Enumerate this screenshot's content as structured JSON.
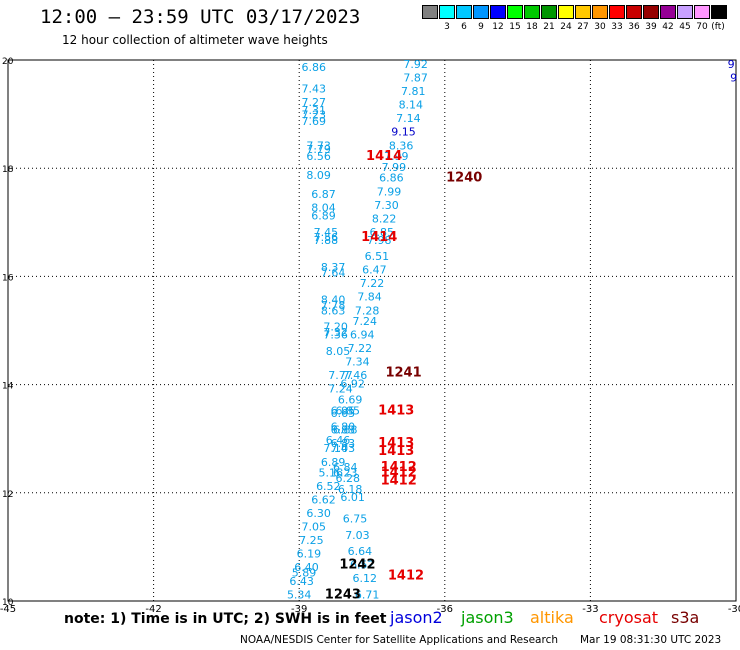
{
  "title": "12:00 – 23:59 UTC 03/17/2023",
  "subtitle": "12 hour collection of altimeter wave heights",
  "legend": {
    "unit": "(ft)",
    "entries": [
      {
        "label": "",
        "color": "#808080"
      },
      {
        "label": "3",
        "color": "#00ffff"
      },
      {
        "label": "6",
        "color": "#00c8ff"
      },
      {
        "label": "9",
        "color": "#0096ff"
      },
      {
        "label": "12",
        "color": "#0000ff"
      },
      {
        "label": "15",
        "color": "#00ff00"
      },
      {
        "label": "18",
        "color": "#00c800"
      },
      {
        "label": "21",
        "color": "#009600"
      },
      {
        "label": "24",
        "color": "#ffff00"
      },
      {
        "label": "27",
        "color": "#ffc800"
      },
      {
        "label": "30",
        "color": "#ff9600"
      },
      {
        "label": "33",
        "color": "#ff0000"
      },
      {
        "label": "36",
        "color": "#c80000"
      },
      {
        "label": "39",
        "color": "#960000"
      },
      {
        "label": "42",
        "color": "#960096"
      },
      {
        "label": "45",
        "color": "#c8a0ff"
      },
      {
        "label": "70",
        "color": "#ff96ff"
      },
      {
        "label": "",
        "color": "#000000"
      }
    ]
  },
  "map": {
    "lon_range": [
      -45,
      -30
    ],
    "lat_range": [
      10,
      20
    ],
    "lon_ticks": [
      {
        "value": -45,
        "label": "-45"
      },
      {
        "value": -42,
        "label": "-42"
      },
      {
        "value": -39,
        "label": "-39"
      },
      {
        "value": -36,
        "label": "-36"
      },
      {
        "value": -33,
        "label": "-33"
      },
      {
        "value": -30,
        "label": "-30"
      }
    ],
    "lat_ticks": [
      {
        "value": 10,
        "label": "10"
      },
      {
        "value": 12,
        "label": "12"
      },
      {
        "value": 14,
        "label": "14"
      },
      {
        "value": 16,
        "label": "16"
      },
      {
        "value": 18,
        "label": "18"
      },
      {
        "value": 20,
        "label": "20"
      }
    ],
    "colors": {
      "swh": "#0aa0e6",
      "swh_high": "#0000c8",
      "id_red": "#e60000",
      "id_dark": "#780000",
      "id_black": "#000000"
    },
    "track_a": [
      {
        "lon": -38.7,
        "lat": 19.8,
        "v": "6.86"
      },
      {
        "lon": -38.7,
        "lat": 19.4,
        "v": "7.43"
      },
      {
        "lon": -38.7,
        "lat": 19.15,
        "v": "7.27"
      },
      {
        "lon": -38.7,
        "lat": 19.0,
        "v": "7.31"
      },
      {
        "lon": -38.7,
        "lat": 18.92,
        "v": "7.23"
      },
      {
        "lon": -38.7,
        "lat": 18.8,
        "v": "7.69"
      },
      {
        "lon": -38.6,
        "lat": 18.35,
        "v": "7.73"
      },
      {
        "lon": -38.6,
        "lat": 18.28,
        "v": "7.79"
      },
      {
        "lon": -38.6,
        "lat": 18.15,
        "v": "6.56"
      },
      {
        "lon": -38.6,
        "lat": 17.8,
        "v": "8.09"
      },
      {
        "lon": -38.5,
        "lat": 17.45,
        "v": "6.87"
      },
      {
        "lon": -38.5,
        "lat": 17.2,
        "v": "8.04"
      },
      {
        "lon": -38.5,
        "lat": 17.05,
        "v": "6.89"
      },
      {
        "lon": -38.45,
        "lat": 16.75,
        "v": "7.45"
      },
      {
        "lon": -38.45,
        "lat": 16.65,
        "v": "7.56"
      },
      {
        "lon": -38.45,
        "lat": 16.6,
        "v": "7.88"
      },
      {
        "lon": -38.3,
        "lat": 16.1,
        "v": "8.37"
      },
      {
        "lon": -38.3,
        "lat": 16.0,
        "v": "7.64"
      },
      {
        "lon": -38.3,
        "lat": 15.5,
        "v": "8.40"
      },
      {
        "lon": -38.3,
        "lat": 15.4,
        "v": "7.78"
      },
      {
        "lon": -38.3,
        "lat": 15.3,
        "v": "8.63"
      },
      {
        "lon": -38.25,
        "lat": 15.0,
        "v": "7.20"
      },
      {
        "lon": -38.25,
        "lat": 14.9,
        "v": "7.32"
      },
      {
        "lon": -38.25,
        "lat": 14.85,
        "v": "7.36"
      },
      {
        "lon": -38.2,
        "lat": 14.55,
        "v": "8.05"
      },
      {
        "lon": -38.15,
        "lat": 14.1,
        "v": "7.77"
      },
      {
        "lon": -38.15,
        "lat": 13.85,
        "v": "7.24"
      },
      {
        "lon": -38.1,
        "lat": 13.45,
        "v": "6.95"
      },
      {
        "lon": -38.1,
        "lat": 13.4,
        "v": "6.65"
      },
      {
        "lon": -38.1,
        "lat": 13.15,
        "v": "6.80"
      },
      {
        "lon": -38.1,
        "lat": 13.1,
        "v": "6.83"
      },
      {
        "lon": -38.2,
        "lat": 12.9,
        "v": "6.46"
      },
      {
        "lon": -38.25,
        "lat": 12.75,
        "v": "7.14"
      },
      {
        "lon": -38.3,
        "lat": 12.5,
        "v": "6.89"
      },
      {
        "lon": -38.35,
        "lat": 12.3,
        "v": "5.16"
      },
      {
        "lon": -38.4,
        "lat": 12.05,
        "v": "6.52"
      },
      {
        "lon": -38.5,
        "lat": 11.8,
        "v": "6.62"
      },
      {
        "lon": -38.6,
        "lat": 11.55,
        "v": "6.30"
      },
      {
        "lon": -38.7,
        "lat": 11.3,
        "v": "7.05"
      },
      {
        "lon": -38.75,
        "lat": 11.05,
        "v": "7.25"
      },
      {
        "lon": -38.8,
        "lat": 10.8,
        "v": "6.19"
      },
      {
        "lon": -38.85,
        "lat": 10.55,
        "v": "6.40"
      },
      {
        "lon": -38.9,
        "lat": 10.45,
        "v": "5.89"
      },
      {
        "lon": -38.95,
        "lat": 10.3,
        "v": "6.43"
      },
      {
        "lon": -39.0,
        "lat": 10.05,
        "v": "5.34"
      }
    ],
    "track_b": [
      {
        "lon": -36.6,
        "lat": 19.85,
        "v": "7.92"
      },
      {
        "lon": -36.6,
        "lat": 19.6,
        "v": "7.87"
      },
      {
        "lon": -36.65,
        "lat": 19.35,
        "v": "7.81"
      },
      {
        "lon": -36.7,
        "lat": 19.1,
        "v": "8.14"
      },
      {
        "lon": -36.75,
        "lat": 18.85,
        "v": "7.14"
      },
      {
        "lon": -36.85,
        "lat": 18.6,
        "v": "9.15",
        "hi": true
      },
      {
        "lon": -36.9,
        "lat": 18.35,
        "v": "8.36"
      },
      {
        "lon": -37.0,
        "lat": 18.15,
        "v": "7.99"
      },
      {
        "lon": -37.05,
        "lat": 17.95,
        "v": "7.99"
      },
      {
        "lon": -37.1,
        "lat": 17.75,
        "v": "6.86"
      },
      {
        "lon": -37.15,
        "lat": 17.5,
        "v": "7.99"
      },
      {
        "lon": -37.2,
        "lat": 17.25,
        "v": "7.30"
      },
      {
        "lon": -37.25,
        "lat": 17.0,
        "v": "8.22"
      },
      {
        "lon": -37.3,
        "lat": 16.75,
        "v": "6.85"
      },
      {
        "lon": -37.35,
        "lat": 16.6,
        "v": "7.98"
      },
      {
        "lon": -37.4,
        "lat": 16.3,
        "v": "6.51"
      },
      {
        "lon": -37.45,
        "lat": 16.05,
        "v": "6.47"
      },
      {
        "lon": -37.5,
        "lat": 15.8,
        "v": "7.22"
      },
      {
        "lon": -37.55,
        "lat": 15.55,
        "v": "7.84"
      },
      {
        "lon": -37.6,
        "lat": 15.3,
        "v": "7.28"
      },
      {
        "lon": -37.65,
        "lat": 15.1,
        "v": "7.24"
      },
      {
        "lon": -37.7,
        "lat": 14.85,
        "v": "6.94"
      },
      {
        "lon": -37.75,
        "lat": 14.6,
        "v": "7.22"
      },
      {
        "lon": -37.8,
        "lat": 14.35,
        "v": "7.34"
      },
      {
        "lon": -37.85,
        "lat": 14.1,
        "v": "7.46"
      },
      {
        "lon": -37.9,
        "lat": 13.95,
        "v": "6.92"
      },
      {
        "lon": -37.95,
        "lat": 13.65,
        "v": "6.69"
      },
      {
        "lon": -38.0,
        "lat": 13.45,
        "v": "6.85"
      },
      {
        "lon": -38.05,
        "lat": 13.1,
        "v": "6.88"
      },
      {
        "lon": -38.1,
        "lat": 12.85,
        "v": "6.83"
      },
      {
        "lon": -38.1,
        "lat": 12.75,
        "v": "7.03"
      },
      {
        "lon": -38.05,
        "lat": 12.4,
        "v": "6.84"
      },
      {
        "lon": -38.05,
        "lat": 12.3,
        "v": "6.23"
      },
      {
        "lon": -38.0,
        "lat": 12.2,
        "v": "6.28"
      },
      {
        "lon": -37.95,
        "lat": 12.0,
        "v": "6.18"
      },
      {
        "lon": -37.9,
        "lat": 11.85,
        "v": "6.01"
      },
      {
        "lon": -37.85,
        "lat": 11.45,
        "v": "6.75"
      },
      {
        "lon": -37.8,
        "lat": 11.15,
        "v": "7.03"
      },
      {
        "lon": -37.75,
        "lat": 10.85,
        "v": "6.64"
      },
      {
        "lon": -37.7,
        "lat": 10.6,
        "v": "6.52"
      },
      {
        "lon": -37.65,
        "lat": 10.35,
        "v": "6.12"
      },
      {
        "lon": -37.6,
        "lat": 10.05,
        "v": "6.71"
      }
    ],
    "pass_ids": [
      {
        "lon": -37.25,
        "lat": 18.15,
        "v": "1414",
        "c": "id_red"
      },
      {
        "lon": -35.6,
        "lat": 17.75,
        "v": "1240",
        "c": "id_dark"
      },
      {
        "lon": -37.35,
        "lat": 16.65,
        "v": "1414",
        "c": "id_red"
      },
      {
        "lon": -36.85,
        "lat": 14.15,
        "v": "1241",
        "c": "id_dark"
      },
      {
        "lon": -37.0,
        "lat": 13.45,
        "v": "1413",
        "c": "id_red"
      },
      {
        "lon": -37.0,
        "lat": 12.85,
        "v": "1413",
        "c": "id_red"
      },
      {
        "lon": -37.0,
        "lat": 12.7,
        "v": "1413",
        "c": "id_red"
      },
      {
        "lon": -36.95,
        "lat": 12.4,
        "v": "1412",
        "c": "id_red"
      },
      {
        "lon": -36.95,
        "lat": 12.3,
        "v": "1412",
        "c": "id_red"
      },
      {
        "lon": -36.95,
        "lat": 12.15,
        "v": "1412",
        "c": "id_red"
      },
      {
        "lon": -37.8,
        "lat": 10.6,
        "v": "1242",
        "c": "id_black"
      },
      {
        "lon": -36.8,
        "lat": 10.4,
        "v": "1412",
        "c": "id_red"
      },
      {
        "lon": -38.1,
        "lat": 10.05,
        "v": "1243",
        "c": "id_black"
      }
    ],
    "edge_marks": [
      {
        "lon": -30.1,
        "lat": 19.85,
        "v": "9"
      },
      {
        "lon": -30.05,
        "lat": 19.6,
        "v": "9"
      }
    ]
  },
  "note": "note: 1) Time is in UTC; 2) SWH is in feet",
  "satellites": [
    {
      "name": "jason2",
      "color": "#0000dc",
      "left": 390
    },
    {
      "name": "jason3",
      "color": "#00a000",
      "left": 461
    },
    {
      "name": "altika",
      "color": "#ff9600",
      "left": 530
    },
    {
      "name": "cryosat",
      "color": "#e60000",
      "left": 599
    },
    {
      "name": "s3a",
      "color": "#780000",
      "left": 671
    }
  ],
  "footer": {
    "credit": "NOAA/NESDIS Center for Satellite Applications and Research",
    "timestamp": "Mar 19 08:31:30 UTC 2023"
  }
}
